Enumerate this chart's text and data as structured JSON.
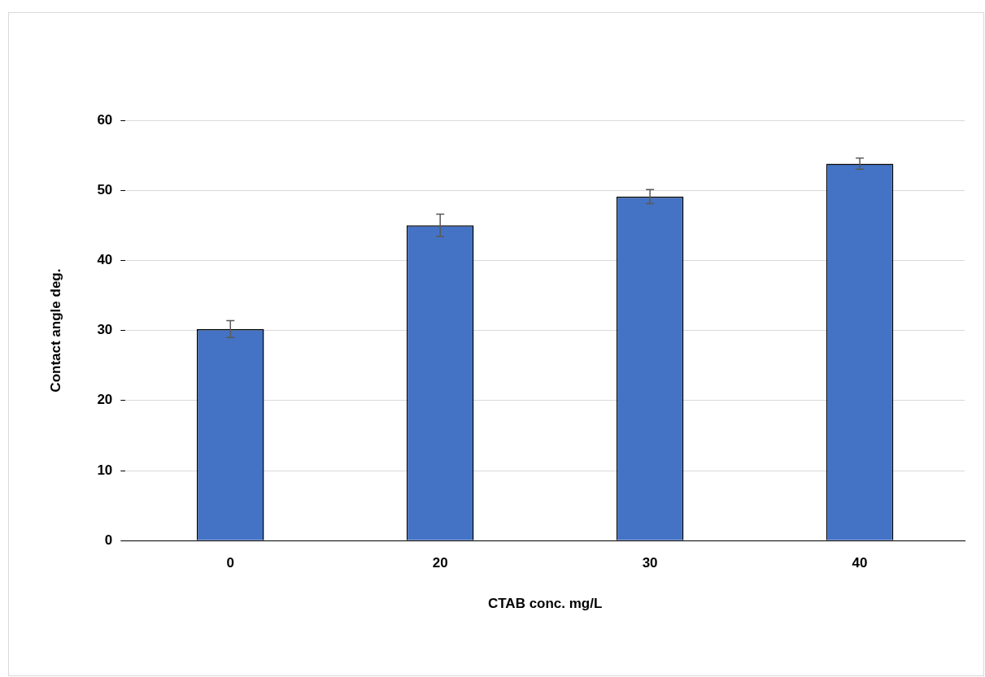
{
  "chart_data": {
    "type": "bar",
    "xlabel": "CTAB conc. mg/L",
    "ylabel": "Contact angle deg.",
    "categories": [
      "0",
      "20",
      "30",
      "40"
    ],
    "values": [
      30.2,
      45.0,
      49.1,
      53.8
    ],
    "errors": [
      1.2,
      1.6,
      1.0,
      0.8
    ],
    "color": "#4472c4",
    "ylim": [
      0,
      60
    ],
    "yticks": [
      0,
      10,
      20,
      30,
      40,
      50,
      60
    ],
    "grid": "y",
    "legend": false
  }
}
